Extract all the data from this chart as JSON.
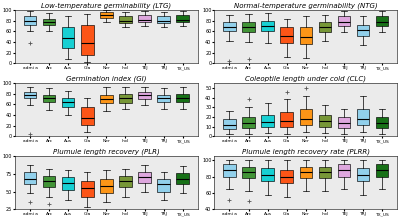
{
  "panels": [
    {
      "title": "Low-temperature germinability (LTG)"
    },
    {
      "title": "Normal-temperature germinability (NTG)"
    },
    {
      "title": "Germination index (GI)"
    },
    {
      "title": "Coleoptile length under cold (CLC)"
    },
    {
      "title": "Plumule length recovery (PLR)"
    },
    {
      "title": "Plumule length recovery rate (PLRR)"
    }
  ],
  "group_labels": [
    "admi a",
    "Arc",
    "Aus",
    "Gla",
    "Ner",
    "Ind",
    "TEJ",
    "TRJ",
    "TX_US"
  ],
  "colors": [
    "#87CEEB",
    "#2E8B22",
    "#00CED1",
    "#FF4500",
    "#FF8C00",
    "#6B8E23",
    "#DDA0DD",
    "#87CEEB",
    "#006400"
  ],
  "background": "#EBEBEB",
  "panel_data": [
    {
      "medians": [
        80,
        78,
        48,
        38,
        90,
        80,
        82,
        80,
        82
      ],
      "q1": [
        72,
        72,
        28,
        15,
        85,
        75,
        78,
        76,
        78
      ],
      "q3": [
        88,
        84,
        68,
        72,
        96,
        88,
        90,
        88,
        90
      ],
      "whislo": [
        60,
        60,
        8,
        2,
        78,
        68,
        70,
        68,
        70
      ],
      "whishi": [
        98,
        95,
        88,
        92,
        100,
        96,
        98,
        96,
        98
      ],
      "fliers_lo": [
        38,
        null,
        null,
        null,
        null,
        null,
        null,
        null,
        null
      ],
      "fliers_hi": [
        null,
        null,
        null,
        null,
        null,
        null,
        null,
        null,
        null
      ],
      "ylim": [
        0,
        100
      ],
      "yticks": [
        0,
        20,
        40,
        60,
        80,
        100
      ]
    },
    {
      "medians": [
        68,
        68,
        70,
        52,
        50,
        68,
        78,
        62,
        78
      ],
      "q1": [
        60,
        58,
        60,
        38,
        36,
        58,
        70,
        52,
        70
      ],
      "q3": [
        78,
        78,
        80,
        68,
        68,
        78,
        88,
        72,
        88
      ],
      "whislo": [
        42,
        40,
        38,
        12,
        10,
        42,
        58,
        35,
        58
      ],
      "whishi": [
        90,
        92,
        95,
        84,
        88,
        90,
        98,
        88,
        98
      ],
      "fliers_lo": [
        5,
        8,
        null,
        null,
        null,
        null,
        null,
        null,
        null
      ],
      "fliers_hi": [
        null,
        null,
        null,
        null,
        null,
        null,
        null,
        null,
        null
      ],
      "ylim": [
        0,
        100
      ],
      "yticks": [
        0,
        20,
        40,
        60,
        80,
        100
      ]
    },
    {
      "medians": [
        78,
        72,
        65,
        35,
        70,
        72,
        78,
        72,
        72
      ],
      "q1": [
        72,
        65,
        55,
        22,
        62,
        62,
        70,
        65,
        65
      ],
      "q3": [
        84,
        78,
        72,
        55,
        78,
        80,
        84,
        78,
        80
      ],
      "whislo": [
        58,
        50,
        40,
        8,
        48,
        52,
        58,
        52,
        52
      ],
      "whishi": [
        92,
        90,
        85,
        72,
        92,
        92,
        92,
        90,
        92
      ],
      "fliers_lo": [
        5,
        null,
        null,
        null,
        null,
        null,
        null,
        null,
        null
      ],
      "fliers_hi": [
        null,
        null,
        null,
        null,
        null,
        null,
        null,
        null,
        null
      ],
      "ylim": [
        0,
        100
      ],
      "yticks": [
        0,
        20,
        40,
        60,
        80,
        100
      ]
    },
    {
      "medians": [
        12,
        14,
        15,
        16,
        18,
        16,
        14,
        18,
        14
      ],
      "q1": [
        8,
        9,
        10,
        10,
        12,
        10,
        9,
        12,
        9
      ],
      "q3": [
        18,
        20,
        22,
        25,
        28,
        22,
        20,
        28,
        20
      ],
      "whislo": [
        3,
        3,
        4,
        3,
        5,
        4,
        3,
        5,
        3
      ],
      "whishi": [
        26,
        30,
        34,
        38,
        42,
        32,
        28,
        42,
        28
      ],
      "fliers_lo": [
        null,
        null,
        null,
        null,
        null,
        null,
        null,
        null,
        null
      ],
      "fliers_hi": [
        null,
        38,
        null,
        46,
        50,
        null,
        null,
        null,
        null
      ],
      "ylim": [
        0,
        55
      ],
      "yticks": [
        0,
        10,
        20,
        30,
        40,
        50
      ]
    },
    {
      "medians": [
        68,
        65,
        62,
        55,
        58,
        65,
        70,
        60,
        68
      ],
      "q1": [
        60,
        56,
        52,
        42,
        48,
        56,
        62,
        50,
        60
      ],
      "q3": [
        78,
        72,
        70,
        65,
        68,
        72,
        78,
        68,
        76
      ],
      "whislo": [
        48,
        42,
        38,
        28,
        35,
        42,
        50,
        38,
        48
      ],
      "whishi": [
        88,
        82,
        80,
        78,
        80,
        82,
        88,
        78,
        86
      ],
      "fliers_lo": [
        35,
        32,
        null,
        null,
        null,
        null,
        null,
        null,
        null
      ],
      "fliers_hi": [
        null,
        null,
        null,
        null,
        null,
        null,
        null,
        null,
        null
      ],
      "ylim": [
        25,
        100
      ],
      "yticks": [
        25,
        50,
        75,
        100
      ]
    },
    {
      "medians": [
        88,
        85,
        82,
        80,
        85,
        85,
        88,
        82,
        88
      ],
      "q1": [
        80,
        78,
        74,
        72,
        78,
        78,
        80,
        74,
        80
      ],
      "q3": [
        95,
        92,
        90,
        88,
        92,
        92,
        95,
        90,
        95
      ],
      "whislo": [
        65,
        62,
        58,
        55,
        62,
        62,
        65,
        58,
        65
      ],
      "whishi": [
        100,
        100,
        100,
        100,
        100,
        100,
        100,
        100,
        100
      ],
      "fliers_lo": [
        52,
        50,
        null,
        null,
        null,
        null,
        null,
        null,
        null
      ],
      "fliers_hi": [
        null,
        null,
        null,
        null,
        null,
        null,
        null,
        null,
        null
      ],
      "ylim": [
        40,
        105
      ],
      "yticks": [
        40,
        60,
        80,
        100
      ]
    }
  ]
}
